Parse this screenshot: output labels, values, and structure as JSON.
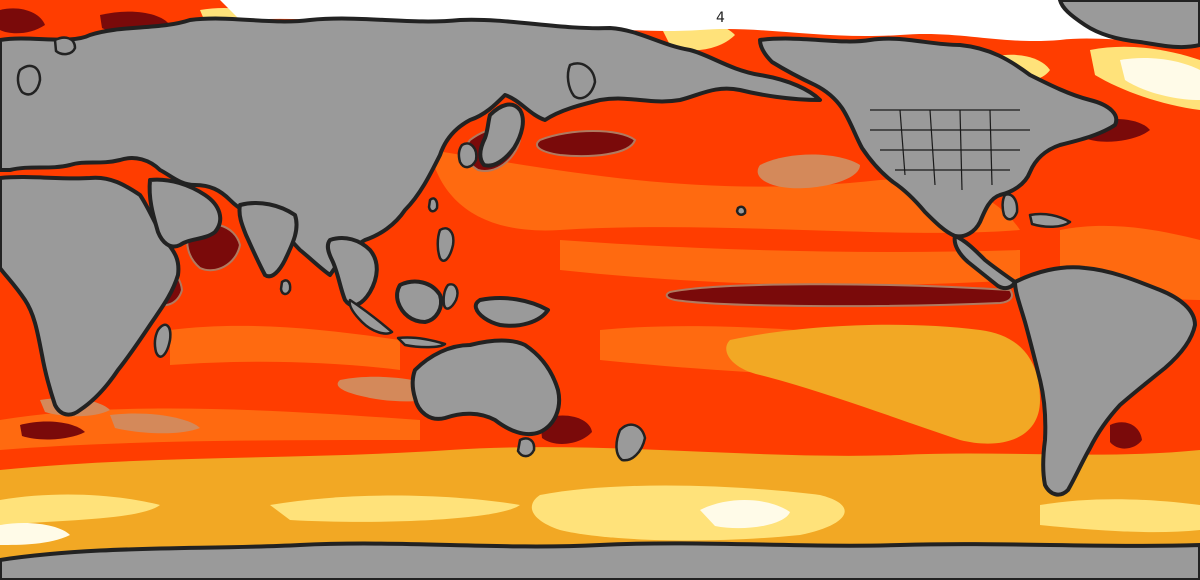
{
  "map": {
    "colors": {
      "ocean_base": "#ff3d00",
      "ocean_light": "#ff6a10",
      "warm_band": "#f2a824",
      "pale_band": "#ffe27a",
      "near_white": "#fffbe8",
      "hot_spot": "#7a0a0a",
      "tan_patch": "#d4895a",
      "land": "#9a9a9a",
      "coast": "#222222",
      "ice": "#ffffff"
    },
    "contour_label": "4"
  }
}
